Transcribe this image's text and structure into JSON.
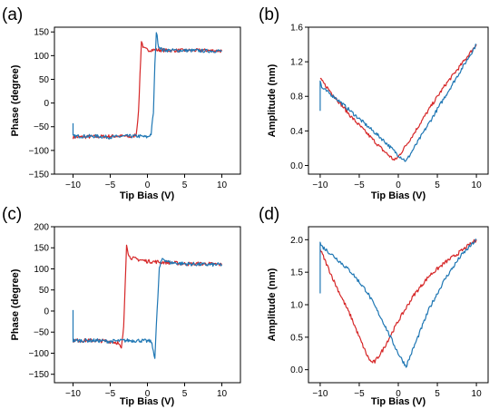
{
  "chart_data": [
    {
      "panel": "(a)",
      "type": "line",
      "xlabel": "Tip Bias (V)",
      "ylabel": "Phase (degree)",
      "xlim": [
        -12.5,
        12.5
      ],
      "ylim": [
        -150,
        160
      ],
      "xticks": [
        -10,
        -5,
        0,
        5,
        10
      ],
      "yticks": [
        -150,
        -100,
        -50,
        0,
        50,
        100,
        150
      ],
      "xtick_labels": [
        "−10",
        "−5",
        "0",
        "5",
        "10"
      ],
      "ytick_labels": [
        "−150",
        "−100",
        "−50",
        "0",
        "50",
        "100",
        "150"
      ],
      "grid": false,
      "legend": "none",
      "series": [
        {
          "color": "#d62728",
          "x": [
            -10,
            -7,
            -5,
            -3,
            -2,
            -1.5,
            -1.2,
            -1.0,
            -0.8,
            -0.5,
            0,
            1,
            3,
            5,
            8,
            10
          ],
          "y": [
            -72,
            -71,
            -70,
            -70,
            -72,
            -65,
            -20,
            60,
            130,
            115,
            112,
            112,
            111,
            111,
            111,
            110
          ]
        },
        {
          "color": "#1f77b4",
          "x": [
            -10,
            -10,
            -9.8,
            -7,
            -5,
            -3,
            -1,
            0,
            0.5,
            0.8,
            1.0,
            1.2,
            1.5,
            2,
            3,
            5,
            8,
            10
          ],
          "y": [
            -45,
            -70,
            -70,
            -70,
            -72,
            -70,
            -70,
            -72,
            -65,
            -20,
            80,
            150,
            120,
            112,
            111,
            111,
            110,
            110
          ]
        }
      ]
    },
    {
      "panel": "(b)",
      "type": "line",
      "xlabel": "Tip Bias (V)",
      "ylabel": "Amplitude (nm)",
      "xlim": [
        -11.5,
        11.5
      ],
      "ylim": [
        -0.1,
        1.6
      ],
      "xticks": [
        -10,
        -5,
        0,
        5,
        10
      ],
      "yticks": [
        0.0,
        0.4,
        0.8,
        1.2,
        1.6
      ],
      "xtick_labels": [
        "−10",
        "−5",
        "0",
        "5",
        "10"
      ],
      "ytick_labels": [
        "0.0",
        "0.4",
        "0.8",
        "1.2",
        "1.6"
      ],
      "grid": false,
      "legend": "none",
      "series": [
        {
          "color": "#d62728",
          "x": [
            -10,
            -8,
            -6,
            -4,
            -2,
            -1,
            -0.5,
            0,
            2,
            4,
            6,
            8,
            10
          ],
          "y": [
            1.0,
            0.78,
            0.56,
            0.37,
            0.18,
            0.1,
            0.06,
            0.1,
            0.37,
            0.66,
            0.93,
            1.16,
            1.4
          ]
        },
        {
          "color": "#1f77b4",
          "x": [
            -10,
            -10,
            -9.8,
            -8,
            -6,
            -4,
            -2,
            0,
            1,
            2,
            4,
            6,
            8,
            10
          ],
          "y": [
            0.65,
            0.98,
            0.9,
            0.78,
            0.62,
            0.46,
            0.3,
            0.12,
            0.05,
            0.2,
            0.5,
            0.8,
            1.1,
            1.4
          ]
        }
      ]
    },
    {
      "panel": "(c)",
      "type": "line",
      "xlabel": "Tip Bias (V)",
      "ylabel": "Phase (degree)",
      "xlim": [
        -12.5,
        12.5
      ],
      "ylim": [
        -170,
        200
      ],
      "xticks": [
        -10,
        -5,
        0,
        5,
        10
      ],
      "yticks": [
        -150,
        -100,
        -50,
        0,
        50,
        100,
        150,
        200
      ],
      "xtick_labels": [
        "−10",
        "−5",
        "0",
        "5",
        "10"
      ],
      "ytick_labels": [
        "−150",
        "−100",
        "−50",
        "0",
        "50",
        "100",
        "150",
        "200"
      ],
      "grid": false,
      "legend": "none",
      "series": [
        {
          "color": "#d62728",
          "x": [
            -10,
            -7,
            -5,
            -4,
            -3.5,
            -3.2,
            -3.0,
            -2.8,
            -2.5,
            -2,
            0,
            3,
            5,
            8,
            10
          ],
          "y": [
            -70,
            -70,
            -72,
            -75,
            -90,
            -40,
            60,
            160,
            130,
            125,
            118,
            115,
            112,
            112,
            110
          ]
        },
        {
          "color": "#1f77b4",
          "x": [
            -10,
            -10,
            -9.8,
            -7,
            -5,
            -3,
            -1,
            0.5,
            1.0,
            1.3,
            1.6,
            2,
            3,
            5,
            8,
            10
          ],
          "y": [
            5,
            -70,
            -70,
            -70,
            -72,
            -70,
            -70,
            -72,
            -110,
            0,
            100,
            125,
            115,
            112,
            110,
            110
          ]
        }
      ]
    },
    {
      "panel": "(d)",
      "type": "line",
      "xlabel": "Tip Bias (V)",
      "ylabel": "Amplitude (nm)",
      "xlim": [
        -11.5,
        11.5
      ],
      "ylim": [
        -0.2,
        2.2
      ],
      "xticks": [
        -10,
        -5,
        0,
        5,
        10
      ],
      "yticks": [
        0.0,
        0.5,
        1.0,
        1.5,
        2.0
      ],
      "xtick_labels": [
        "−10",
        "−5",
        "0",
        "5",
        "10"
      ],
      "ytick_labels": [
        "0.0",
        "0.5",
        "1.0",
        "1.5",
        "2.0"
      ],
      "grid": false,
      "legend": "none",
      "series": [
        {
          "color": "#d62728",
          "x": [
            -10,
            -8,
            -6,
            -5,
            -4,
            -3.5,
            -3,
            -2,
            0,
            2,
            4,
            6,
            8,
            10
          ],
          "y": [
            1.85,
            1.3,
            0.8,
            0.5,
            0.22,
            0.12,
            0.12,
            0.3,
            0.75,
            1.15,
            1.45,
            1.65,
            1.82,
            2.0
          ]
        },
        {
          "color": "#1f77b4",
          "x": [
            -10,
            -10,
            -9.8,
            -8,
            -6,
            -4,
            -2,
            0,
            1,
            2,
            4,
            6,
            8,
            10
          ],
          "y": [
            1.2,
            1.95,
            1.9,
            1.72,
            1.5,
            1.2,
            0.75,
            0.25,
            0.05,
            0.35,
            0.95,
            1.4,
            1.75,
            2.0
          ]
        }
      ]
    }
  ]
}
